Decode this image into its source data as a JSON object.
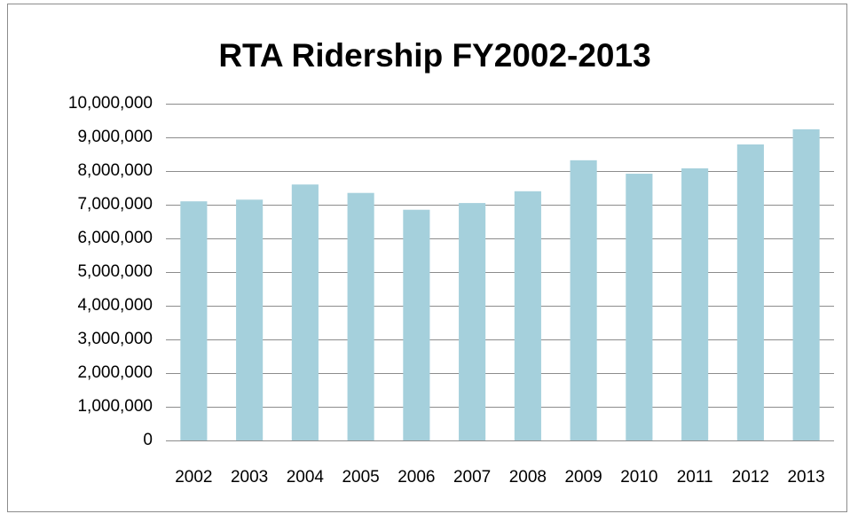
{
  "chart_data": {
    "type": "bar",
    "title": "RTA Ridership FY2002-2013",
    "categories": [
      "2002",
      "2003",
      "2004",
      "2005",
      "2006",
      "2007",
      "2008",
      "2009",
      "2010",
      "2011",
      "2012",
      "2013"
    ],
    "values": [
      7100000,
      7150000,
      7600000,
      7350000,
      6850000,
      7050000,
      7400000,
      8320000,
      7920000,
      8080000,
      8790000,
      9240000
    ],
    "color": "#a5d0dc",
    "ylim": [
      0,
      10000000
    ],
    "yticks": [
      0,
      {
        "value": 1000000,
        "label": "1,000,000"
      },
      {
        "value": 2000000,
        "label": "2,000,000"
      },
      {
        "value": 3000000,
        "label": "3,000,000"
      },
      {
        "value": 4000000,
        "label": "4,000,000"
      },
      {
        "value": 5000000,
        "label": "5,000,000"
      },
      {
        "value": 6000000,
        "label": "6,000,000"
      },
      {
        "value": 7000000,
        "label": "7,000,000"
      },
      {
        "value": 8000000,
        "label": "8,000,000"
      },
      {
        "value": 9000000,
        "label": "9,000,000"
      },
      {
        "value": 10000000,
        "label": "10,000,000"
      }
    ],
    "grid": true
  }
}
